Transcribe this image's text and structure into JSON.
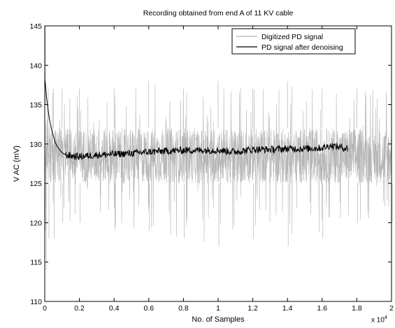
{
  "chart_data": {
    "type": "line",
    "title": "Recording obtained from end A of 11 KV cable",
    "xlabel": "No. of Samples",
    "ylabel": "V AC (mV)",
    "x_scale_note": "x 10",
    "x_scale_exponent": "4",
    "xlim": [
      0,
      2
    ],
    "ylim": [
      110,
      145
    ],
    "x_ticks": [
      0,
      0.2,
      0.4,
      0.6,
      0.8,
      1,
      1.2,
      1.4,
      1.6,
      1.8,
      2
    ],
    "x_tick_labels": [
      "0",
      "0.2",
      "0.4",
      "0.6",
      "0.8",
      "1",
      "1.2",
      "1.4",
      "1.6",
      "1.8",
      "2"
    ],
    "y_ticks": [
      110,
      115,
      120,
      125,
      130,
      135,
      140,
      145
    ],
    "y_tick_labels": [
      "110",
      "115",
      "120",
      "125",
      "130",
      "135",
      "140",
      "145"
    ],
    "grid": false,
    "legend_position": "top-right",
    "series": [
      {
        "name": "Digitized PD signal",
        "color": "#b4b4b4",
        "style": "noisy signal; dense band between about 125 and 132 mV with spikes reaching about 114 to 145 mV",
        "x": [
          0,
          0.005,
          0.02,
          0.05,
          0.1,
          0.2,
          0.4,
          0.6,
          0.8,
          1.0,
          1.2,
          1.4,
          1.6,
          1.8,
          2.0
        ],
        "band_low": [
          125,
          125,
          125,
          125,
          125,
          125,
          125,
          125,
          125,
          125,
          125,
          125,
          125,
          125,
          125
        ],
        "band_high": [
          138,
          135,
          133,
          132,
          132,
          132,
          132,
          132,
          132,
          132,
          132,
          132,
          132,
          132,
          132
        ],
        "extremes_high": [
          145,
          145,
          137,
          137,
          137,
          137,
          137,
          138,
          137,
          138,
          137,
          138,
          137,
          137,
          137
        ],
        "extremes_low": [
          119,
          114,
          118,
          118,
          120,
          120,
          119,
          119,
          118,
          117,
          118,
          117,
          118,
          120,
          120
        ]
      },
      {
        "name": "PD signal after denoising",
        "color": "#000000",
        "x": [
          0,
          0.005,
          0.01,
          0.02,
          0.03,
          0.04,
          0.05,
          0.06,
          0.08,
          0.1,
          0.12,
          0.15,
          0.2,
          0.3,
          0.4,
          0.5,
          0.6,
          0.7,
          0.8,
          0.9,
          1.0,
          1.1,
          1.2,
          1.3,
          1.4,
          1.5,
          1.6,
          1.65,
          1.7,
          1.75
        ],
        "values": [
          138.2,
          137.3,
          136.0,
          134.2,
          132.8,
          131.8,
          131.0,
          130.2,
          129.4,
          128.9,
          128.6,
          128.5,
          128.4,
          128.6,
          128.7,
          128.8,
          129.0,
          129.1,
          129.2,
          129.2,
          129.2,
          129.0,
          129.3,
          129.3,
          129.4,
          129.4,
          129.5,
          129.8,
          129.6,
          129.4
        ]
      }
    ]
  }
}
